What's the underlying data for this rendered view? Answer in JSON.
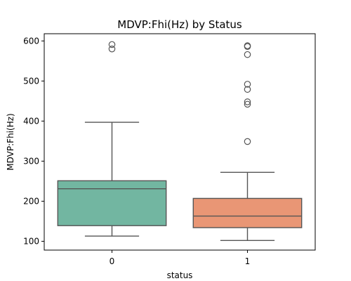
{
  "chart_data": {
    "type": "box",
    "title": "MDVP:Fhi(Hz) by Status",
    "xlabel": "status",
    "ylabel": "MDVP:Fhi(Hz)",
    "categories": [
      "0",
      "1"
    ],
    "ylim": [
      78,
      618
    ],
    "yticks": [
      100,
      200,
      300,
      400,
      500,
      600
    ],
    "grid": false,
    "boxes": [
      {
        "category": "0",
        "color": "#72b6a1",
        "whisker_low": 113,
        "q1": 139,
        "median": 231,
        "q3": 251,
        "whisker_high": 397,
        "outliers": [
          580,
          591
        ]
      },
      {
        "category": "1",
        "color": "#e99675",
        "whisker_low": 102,
        "q1": 134,
        "median": 163,
        "q3": 207,
        "whisker_high": 272,
        "outliers": [
          349,
          442,
          448,
          479,
          492,
          566,
          586,
          588
        ]
      }
    ]
  }
}
